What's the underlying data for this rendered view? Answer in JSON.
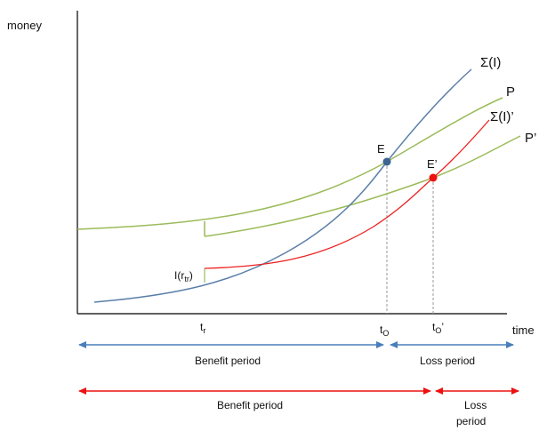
{
  "axes": {
    "y_label": "money",
    "x_label": "time"
  },
  "curves": {
    "sigma_i": {
      "label": "Σ(I)",
      "color": "#5b7fa8"
    },
    "p": {
      "label": "P",
      "color": "#9bbb59"
    },
    "sigma_i_prime": {
      "label": "Σ(I)’",
      "color": "#ee2222"
    },
    "p_prime": {
      "label": "P’",
      "color": "#9bbb59"
    }
  },
  "points": {
    "e": {
      "label": "E",
      "color": "#3d6591"
    },
    "e_prime": {
      "label": "E’",
      "color": "#ee1111"
    }
  },
  "annotations": {
    "i_rtr_base": "I(r",
    "i_rtr_sub": "tr",
    "i_rtr_close": ")"
  },
  "ticks": {
    "tr_base": "t",
    "tr_sub": "r",
    "t0_base": "t",
    "t0_sub": "O",
    "t0p_base": "t",
    "t0p_sub": "O",
    "t0p_prime": "’"
  },
  "periods": {
    "blue": {
      "color": "#4a7ebb",
      "benefit": "Benefit period",
      "loss": "Loss period"
    },
    "red": {
      "color": "#ee1111",
      "benefit": "Benefit period",
      "loss_line1": "Loss",
      "loss_line2": "period"
    }
  }
}
